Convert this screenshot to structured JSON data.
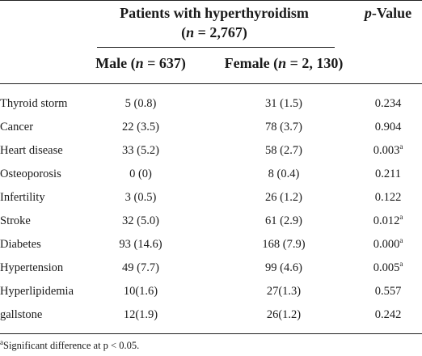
{
  "table": {
    "header": {
      "group_line1": "Patients with hyperthyroidism",
      "group_line2_open": "(",
      "group_line2_n": "n",
      "group_line2_rest": " = 2,767)",
      "pvalue_p": "p",
      "pvalue_rest": "-Value",
      "male_prefix": "Male (",
      "male_n": "n",
      "male_rest": " = 637)",
      "female_prefix": "Female (",
      "female_n": "n",
      "female_rest": " = 2, 130)"
    },
    "rows": [
      {
        "label": "Thyroid storm",
        "male": "5 (0.8)",
        "female": "31 (1.5)",
        "p": "0.234",
        "sup": ""
      },
      {
        "label": "Cancer",
        "male": "22 (3.5)",
        "female": "78 (3.7)",
        "p": "0.904",
        "sup": ""
      },
      {
        "label": "Heart disease",
        "male": "33 (5.2)",
        "female": "58 (2.7)",
        "p": "0.003",
        "sup": "a"
      },
      {
        "label": "Osteoporosis",
        "male": "0 (0)",
        "female": "8 (0.4)",
        "p": "0.211",
        "sup": ""
      },
      {
        "label": "Infertility",
        "male": "3 (0.5)",
        "female": "26 (1.2)",
        "p": "0.122",
        "sup": ""
      },
      {
        "label": "Stroke",
        "male": "32 (5.0)",
        "female": "61 (2.9)",
        "p": "0.012",
        "sup": "a"
      },
      {
        "label": "Diabetes",
        "male": "93 (14.6)",
        "female": "168 (7.9)",
        "p": "0.000",
        "sup": "a"
      },
      {
        "label": "Hypertension",
        "male": "49 (7.7)",
        "female": "99 (4.6)",
        "p": "0.005",
        "sup": "a"
      },
      {
        "label": "Hyperlipidemia",
        "male": "10(1.6)",
        "female": "27(1.3)",
        "p": "0.557",
        "sup": ""
      },
      {
        "label": "gallstone",
        "male": "12(1.9)",
        "female": "26(1.2)",
        "p": "0.242",
        "sup": ""
      }
    ],
    "footnote": {
      "marker": "a",
      "text": "Significant difference at p < 0.05."
    }
  }
}
